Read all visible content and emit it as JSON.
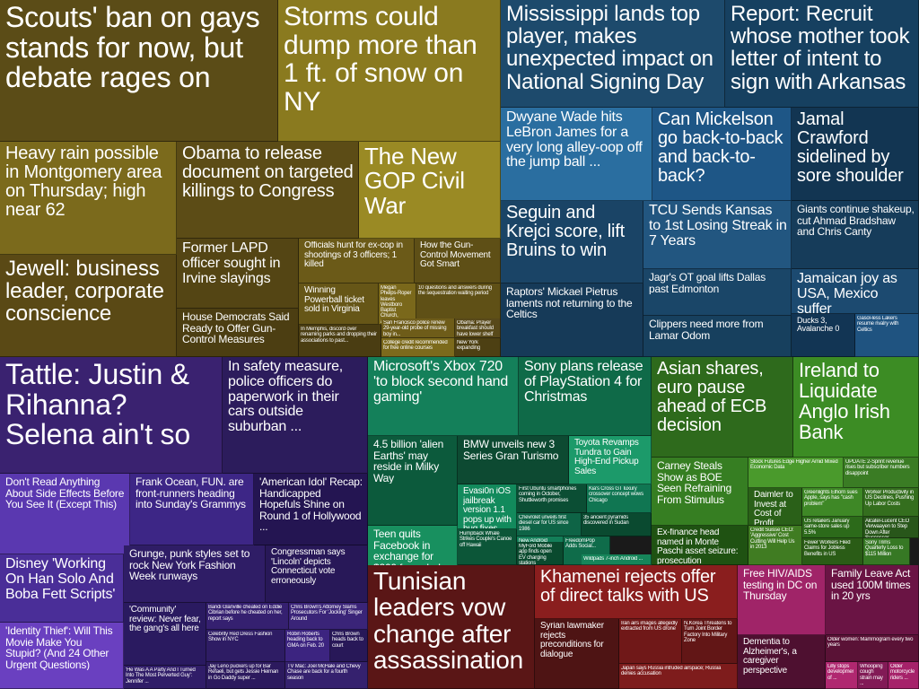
{
  "headlines": [
    {
      "id": "scouts",
      "text": "Scouts' ban on gays stands for now, but debate rages on",
      "color": "#4f4214"
    },
    {
      "id": "storms",
      "text": "Storms could dump more than 1 ft. of snow on NY",
      "color": "#8a7a1f"
    },
    {
      "id": "heavy-rain",
      "text": "Heavy rain possible in Montgomery area on Thursday; high near 62",
      "color": "#7b6a1c"
    },
    {
      "id": "obama-killings",
      "text": "Obama to release document on targeted killings to Congress",
      "color": "#5c4c16"
    },
    {
      "id": "gop-civil-war",
      "text": "The New GOP Civil War",
      "color": "#9a8a24"
    },
    {
      "id": "jewell",
      "text": "Jewell: business leader, corporate conscience",
      "color": "#5a4915"
    },
    {
      "id": "lapd",
      "text": "Former LAPD officer sought in Irvine slayings",
      "color": "#544514"
    },
    {
      "id": "house-dems",
      "text": "House Democrats Said Ready to Offer Gun-Control Measures",
      "color": "#4c3e12"
    },
    {
      "id": "ex-cop",
      "text": "Officials hunt for ex-cop in shootings of 3 officers; 1 killed",
      "color": "#6b5a18"
    },
    {
      "id": "gun-control-smart",
      "text": "How the Gun-Control Movement Got Smart",
      "color": "#5e4f16"
    },
    {
      "id": "powerball",
      "text": "Winning Powerball ticket sold in Virginia",
      "color": "#665617"
    },
    {
      "id": "westboro",
      "text": "Megan Phelps-Roper leaves Westboro Baptist Church, apologizes for inflicting ...",
      "color": "#7a681b"
    },
    {
      "id": "sequestration",
      "text": "10 questions and answers during the sequestration waiting period",
      "color": "#5f5016"
    },
    {
      "id": "interrupted",
      "text": "In Memphis, discord over renaming parks and dropping their associations to past...",
      "color": "#4a3d12"
    },
    {
      "id": "sf-police",
      "text": "San Francisco police renew 29-year-old probe of missing boy in...",
      "color": "#6e5c19"
    },
    {
      "id": "obama-prayer",
      "text": "Obama: Prayer breakfast should have lower shelf",
      "color": "#58491a"
    },
    {
      "id": "college-credit",
      "text": "College credit recommended for free online courses",
      "color": "#7c6a1c"
    },
    {
      "id": "ny-expanding",
      "text": "New York expanding",
      "color": "#4d4013"
    },
    {
      "id": "mississippi",
      "text": "Mississippi lands top player, makes unexpected impact on National Signing Day",
      "color": "#1d4a6c"
    },
    {
      "id": "report-recruit",
      "text": "Report: Recruit whose mother took letter of intent to sign with Arkansas",
      "color": "#164060"
    },
    {
      "id": "dwyane",
      "text": "Dwyane Wade hits LeBron James for a very long alley-oop off the jump ball ...",
      "color": "#2a6ea0"
    },
    {
      "id": "mickelson",
      "text": "Can Mickelson go back-to-back and back-to-back?",
      "color": "#1e5686"
    },
    {
      "id": "crawford",
      "text": "Jamal Crawford sidelined by sore shoulder",
      "color": "#123552"
    },
    {
      "id": "seguin",
      "text": "Seguin and Krejci score, lift Bruins to win",
      "color": "#1a4466"
    },
    {
      "id": "tcu",
      "text": "TCU Sends Kansas to 1st Losing Streak in 7 Years",
      "color": "#225680"
    },
    {
      "id": "giants",
      "text": "Giants continue shakeup, cut Ahmad Bradshaw and Chris Canty",
      "color": "#163c5a"
    },
    {
      "id": "pietrus",
      "text": "Raptors' Mickael Pietrus laments not returning to the Celtics",
      "color": "#163a58"
    },
    {
      "id": "jagr",
      "text": "Jagr's OT goal lifts Dallas past Edmonton",
      "color": "#1a4668"
    },
    {
      "id": "jamaican",
      "text": "Jamaican joy as USA, Mexico suffer",
      "color": "#1c4a70"
    },
    {
      "id": "clippers",
      "text": "Clippers need more from Lamar Odom",
      "color": "#17405e"
    },
    {
      "id": "ducks",
      "text": "Ducks 3, Avalanche 0",
      "color": "#123554"
    },
    {
      "id": "lakers",
      "text": "Gasol-less Lakers resume rivalry with Celtics",
      "color": "#1f5380"
    },
    {
      "id": "tattle",
      "text": "Tattle: Justin & Rihanna? Selena ain't so",
      "color": "#3a2270"
    },
    {
      "id": "safety",
      "text": "In safety measure, police officers do paperwork in their cars outside suburban ...",
      "color": "#2c1c5c"
    },
    {
      "id": "side-effects",
      "text": "Don't Read Anything About Side Effects Before You See It (Except This)",
      "color": "#5a38b0"
    },
    {
      "id": "frank-ocean",
      "text": "Frank Ocean, FUN. are front-runners heading into Sunday's Grammys",
      "color": "#3d2686"
    },
    {
      "id": "idol",
      "text": "'American Idol' Recap: Handicapped Hopefuls Shine on Round 1 of Hollywood ...",
      "color": "#241552"
    },
    {
      "id": "disney",
      "text": "Disney 'Working On Han Solo And Boba Fett Scripts'",
      "color": "#4a2e98"
    },
    {
      "id": "grunge",
      "text": "Grunge, punk styles set to rock New York Fashion Week runways",
      "color": "#2f1d66"
    },
    {
      "id": "lincoln",
      "text": "Congressman says 'Lincoln' depicts Connecticut vote erroneously",
      "color": "#281858"
    },
    {
      "id": "identity-thief",
      "text": "'Identity Thief': Will This Movie Make You Stupid? (And 24 Other Urgent Questions)",
      "color": "#6a40c0"
    },
    {
      "id": "community",
      "text": "'Community' review: Never fear, the gang's all here",
      "color": "#2a1a60"
    },
    {
      "id": "bandi",
      "text": "Bandi Glanville cheated on Eddie Cibrian before he cheated on her, report says",
      "color": "#352070"
    },
    {
      "id": "chris-brown-attorney",
      "text": "Chris Brown's Attorney Slams Prosecutors For 'Jocking' Singer Around",
      "color": "#3a2478"
    },
    {
      "id": "celebrity-red",
      "text": "Celebrity Red Dress Fashion Show in NYC",
      "color": "#2e1c64"
    },
    {
      "id": "robin-roberts",
      "text": "Robin Roberts heading back to GMA on Feb. 20",
      "color": "#3c2480"
    },
    {
      "id": "chris-brown-court",
      "text": "Chris Brown heads back to court",
      "color": "#281858"
    },
    {
      "id": "ex-was",
      "text": "'He Was A A Party And I Turned Into The Most Perverted Guy': Jennifer ...",
      "color": "#301d68"
    },
    {
      "id": "jay-leno",
      "text": "Jay Leno puckers up for Bar Refaeli, but gets Jessie Heiman in Go Daddy super ...",
      "color": "#2c1a5e"
    },
    {
      "id": "tv-mac",
      "text": "TV Mac: Joel McHale and Chevy Chase are back for a fourth season",
      "color": "#35216e"
    },
    {
      "id": "xbox",
      "text": "Microsoft's Xbox 720 'to block second hand gaming'",
      "color": "#14805a"
    },
    {
      "id": "ps4",
      "text": "Sony plans release of PlayStation 4 for Christmas",
      "color": "#0f6a48"
    },
    {
      "id": "alien-earths",
      "text": "4.5 billion 'alien Earths' may reside in Milky Way",
      "color": "#0c5a3c"
    },
    {
      "id": "bmw",
      "text": "BMW unveils new 3 Series Gran Turismo",
      "color": "#0d4a32"
    },
    {
      "id": "toyota",
      "text": "Toyota Revamps Tundra to Gain High-End Pickup Sales",
      "color": "#1c9a6a"
    },
    {
      "id": "evasi0n",
      "text": "Evasi0n iOS jailbreak version 1.1 pops up with bug fixes",
      "color": "#128a5c"
    },
    {
      "id": "first-ubuntu",
      "text": "First Ubuntu smartphones coming in October, Shuttleworth promises",
      "color": "#0b4e34"
    },
    {
      "id": "kia",
      "text": "Kia's Cross GT luxury crossover concept wows Chicago",
      "color": "#107652"
    },
    {
      "id": "teen-quits",
      "text": "Teen quits Facebook in exchange for $200 from dad",
      "color": "#18905f"
    },
    {
      "id": "chevrolet",
      "text": "Chevrolet unveils first diesel car for US since 1986",
      "color": "#0e6446"
    },
    {
      "id": "ancient-pyramids",
      "text": "35 ancient pyramids discovered in Sudan",
      "color": "#0a4a30"
    },
    {
      "id": "humpback",
      "text": "Humpback Whale Strikes Couple's Canoe off Hawaii",
      "color": "#0c5638"
    },
    {
      "id": "new-android",
      "text": "New Android 2013 ...",
      "color": "#137e58"
    },
    {
      "id": "freedompop",
      "text": "FreedomPop Adds Social...",
      "color": "#0f6c4a"
    },
    {
      "id": "myford",
      "text": "MyFord Mobile app finds open EV charging stations",
      "color": "#0a4a2e"
    },
    {
      "id": "wildpads",
      "text": "Wildpads 7-inch Android ...",
      "color": "#16855a"
    },
    {
      "id": "asian-shares",
      "text": "Asian shares, euro pause ahead of ECB decision",
      "color": "#2e6a1c"
    },
    {
      "id": "ireland",
      "text": "Ireland to Liquidate Anglo Irish Bank",
      "color": "#3c8c24"
    },
    {
      "id": "carney",
      "text": "Carney Steals Show as BOE Seen Refraining From Stimulus",
      "color": "#367e22"
    },
    {
      "id": "stock-futures",
      "text": "Stock Futures Edge Higher Amid Mixed Economic Data",
      "color": "#4a9a2c"
    },
    {
      "id": "update2",
      "text": "UPDATE 2-Sprint revenue rises but subscriber numbers disappoint",
      "color": "#3a7c24"
    },
    {
      "id": "daimler",
      "text": "Daimler to Invest at Cost of Profit",
      "color": "#2a6018"
    },
    {
      "id": "greenlights",
      "text": "Greenlights Elhorn sues Apple, says has \"cash problem\"",
      "color": "#3e8826"
    },
    {
      "id": "worker-productivity",
      "text": "Worker Productivity in US Declines, Pushing Up Labor Costs",
      "color": "#346e1e"
    },
    {
      "id": "us-retailers",
      "text": "US retailers January same-store sales up 5.5%",
      "color": "#2c6a1a"
    },
    {
      "id": "alcatel",
      "text": "Alcatel-Lucent CEO Verwaayen to Step Down After Successor",
      "color": "#28561a"
    },
    {
      "id": "ex-finance",
      "text": "Ex-finance head named in Monte Paschi asset seizure: prosecution",
      "color": "#1f5212"
    },
    {
      "id": "credit-suisse",
      "text": "Credit Suisse CEO: 'Aggressive' Cost Cutting Will Help Us in 2013",
      "color": "#407c22"
    },
    {
      "id": "fewer-workers",
      "text": "Fewer Workers Filed Claims for Jobless Benefits in US",
      "color": "#2a5c16"
    },
    {
      "id": "sony-trims",
      "text": "Sony Trims Quarterly Loss to $115 Million",
      "color": "#367824"
    },
    {
      "id": "tunisian",
      "text": "Tunisian leaders vow change after assassination",
      "color": "#5a1616"
    },
    {
      "id": "khamenei",
      "text": "Khamenei rejects offer of direct talks with US",
      "color": "#8a1e1e"
    },
    {
      "id": "syrian",
      "text": "Syrian lawmaker rejects preconditions for dialogue",
      "color": "#4e1414"
    },
    {
      "id": "iran-aids",
      "text": "Iran airs images allegedly extracted from US drone",
      "color": "#701818"
    },
    {
      "id": "n-korea",
      "text": "N.Korea Threatens to Turn Joint Border Factory Into Military Zone",
      "color": "#621616"
    },
    {
      "id": "japan-says",
      "text": "Japan says Russia intruded airspace; Russia denies accusation",
      "color": "#7e1c1c"
    },
    {
      "id": "hiv",
      "text": "Free HIV/AIDS testing in DC on Thursday",
      "color": "#a02468"
    },
    {
      "id": "fmla",
      "text": "Family Leave Act used 100M times in 20 yrs",
      "color": "#6a1444"
    },
    {
      "id": "dementia",
      "text": "Dementia to Alzheimer's, a caregiver perspective",
      "color": "#4e1030"
    },
    {
      "id": "older-women",
      "text": "Older women: Mammogram every two years",
      "color": "#5a1236"
    },
    {
      "id": "lilly",
      "text": "Lilly stops development of ...",
      "color": "#b02870"
    },
    {
      "id": "whooping",
      "text": "Whooping cough strain may ...",
      "color": "#821a56"
    },
    {
      "id": "older-motorcycle",
      "text": "Older motorcycle riders ...",
      "color": "#a6226a"
    }
  ]
}
